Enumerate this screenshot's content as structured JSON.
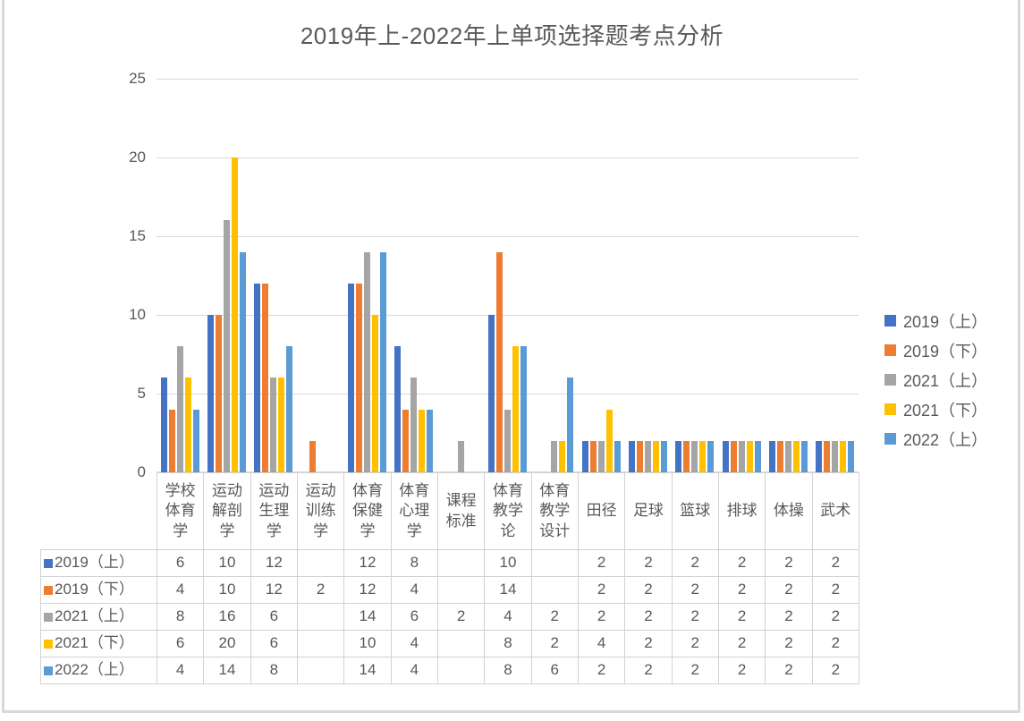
{
  "page": {
    "background": "#ffffff",
    "border_color": "#d9d9d9",
    "text_color": "#595959",
    "gridline_color": "#d9d9d9"
  },
  "chart_data": {
    "type": "bar",
    "title": "2019年上-2022年上单项选择题考点分析",
    "xlabel": "",
    "ylabel": "",
    "ylim": [
      0,
      25
    ],
    "y_ticks": [
      0,
      5,
      10,
      15,
      20,
      25
    ],
    "grid": true,
    "legend_position": "right",
    "data_table_shown": true,
    "categories": [
      "学校体育学",
      "运动解剖学",
      "运动生理学",
      "运动训练学",
      "体育保健学",
      "体育心理学",
      "课程标准",
      "体育教学论",
      "体育教学设计",
      "田径",
      "足球",
      "篮球",
      "排球",
      "体操",
      "武术"
    ],
    "series": [
      {
        "name": "2019（上）",
        "color": "#4472C4",
        "values": [
          6,
          10,
          12,
          null,
          12,
          8,
          null,
          10,
          null,
          2,
          2,
          2,
          2,
          2,
          2
        ]
      },
      {
        "name": "2019（下）",
        "color": "#ED7D31",
        "values": [
          4,
          10,
          12,
          2,
          12,
          4,
          null,
          14,
          null,
          2,
          2,
          2,
          2,
          2,
          2
        ]
      },
      {
        "name": "2021（上）",
        "color": "#A5A5A5",
        "values": [
          8,
          16,
          6,
          null,
          14,
          6,
          2,
          4,
          2,
          2,
          2,
          2,
          2,
          2,
          2
        ]
      },
      {
        "name": "2021（下）",
        "color": "#FFC000",
        "values": [
          6,
          20,
          6,
          null,
          10,
          4,
          null,
          8,
          2,
          4,
          2,
          2,
          2,
          2,
          2
        ]
      },
      {
        "name": "2022（上）",
        "color": "#5B9BD5",
        "values": [
          4,
          14,
          8,
          null,
          14,
          4,
          null,
          8,
          6,
          2,
          2,
          2,
          2,
          2,
          2
        ]
      }
    ]
  }
}
